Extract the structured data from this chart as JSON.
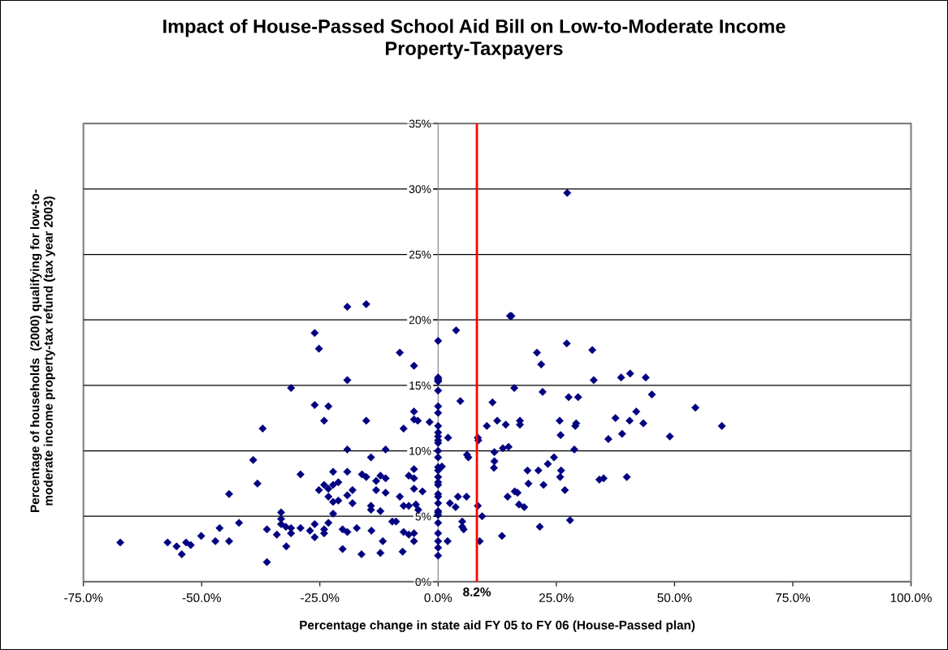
{
  "chart_data": {
    "type": "scatter",
    "title": "Impact of House-Passed School Aid Bill on Low-to-Moderate Income\nProperty-Taxpayers",
    "xlabel": "Percentage change in state aid FY 05 to FY 06 (House-Passed plan)",
    "ylabel": "Percentage of households  (2000) qualifying for low-to-\nmoderate income property-tax refund (tax year 2003)",
    "xlim": [
      -75,
      100
    ],
    "ylim": [
      0,
      35
    ],
    "xticks": [
      {
        "value": -75,
        "label": "-75.0%"
      },
      {
        "value": -50,
        "label": "-50.0%"
      },
      {
        "value": -25,
        "label": "-25.0%"
      },
      {
        "value": 0,
        "label": "0.0%"
      },
      {
        "value": 25,
        "label": "25.0%"
      },
      {
        "value": 50,
        "label": "50.0%"
      },
      {
        "value": 75,
        "label": "75.0%"
      },
      {
        "value": 100,
        "label": "100.0%"
      }
    ],
    "yticks": [
      {
        "value": 0,
        "label": "0%"
      },
      {
        "value": 5,
        "label": "5%"
      },
      {
        "value": 10,
        "label": "10%"
      },
      {
        "value": 15,
        "label": "15%"
      },
      {
        "value": 20,
        "label": "20%"
      },
      {
        "value": 25,
        "label": "25%"
      },
      {
        "value": 30,
        "label": "30%"
      },
      {
        "value": 35,
        "label": "35%"
      }
    ],
    "grid": "y",
    "marker": "diamond",
    "ref_lines": [
      {
        "axis": "x",
        "value": 8.2,
        "label": "8.2%",
        "color": "#ff0000",
        "line_style": "solid"
      }
    ],
    "series": [
      {
        "color": "#000080",
        "x": [
          -67.2,
          -57.2,
          -55.3,
          -54.2,
          -53.3,
          -52.3,
          -50.1,
          -47.1,
          -46.2,
          -44.2,
          -44.2,
          -42.1,
          -39.1,
          -38.2,
          -37.1,
          -36.2,
          -36.2,
          -34.1,
          -33.2,
          -33.2,
          -33.2,
          -32.2,
          -32.1,
          -31.1,
          -31.1,
          -31.1,
          -29.1,
          -29.1,
          -27.1,
          -26.1,
          -26.1,
          -26.1,
          -26.1,
          -25.2,
          -25.2,
          -24.1,
          -24.1,
          -24.1,
          -24.1,
          -23.2,
          -23.2,
          -23.2,
          -23.2,
          -22.2,
          -22.2,
          -22.2,
          -22.2,
          -21.1,
          -21.1,
          -20.2,
          -20.2,
          -19.2,
          -19.2,
          -19.2,
          -19.2,
          -19.2,
          -19.2,
          -18.1,
          -18.1,
          -17.2,
          -16.2,
          -16.1,
          -15.2,
          -15.2,
          -15.2,
          -14.2,
          -14.2,
          -14.2,
          -14.1,
          -13.1,
          -13.1,
          -12.2,
          -12.2,
          -12.2,
          -11.7,
          -11.1,
          -11.1,
          -11.1,
          -9.7,
          -8.9,
          -8.1,
          -8.1,
          -7.5,
          -7.3,
          -7.3,
          -7.3,
          -6.2,
          -6.2,
          -6.2,
          -5.1,
          -5.1,
          -5.1,
          -5.1,
          -5.1,
          -5.1,
          -5.1,
          -5.1,
          -4.7,
          -4.3,
          -4.2,
          -3.3,
          -1.8,
          0,
          0,
          0,
          0,
          0,
          0,
          0,
          0,
          0,
          0,
          0,
          0,
          0,
          0,
          0,
          0,
          0,
          0,
          0,
          0,
          0,
          0,
          0,
          0,
          0,
          0,
          0,
          0,
          0,
          0,
          0,
          0.8,
          2.0,
          2.1,
          2.5,
          3.7,
          3.8,
          4.2,
          4.7,
          5.1,
          5.1,
          5.4,
          6.0,
          6.1,
          6.4,
          8.4,
          8.5,
          8.4,
          8.8,
          9.3,
          10.3,
          11.5,
          11.8,
          11.9,
          11.9,
          12.5,
          13.5,
          13.7,
          14.3,
          14.7,
          14.9,
          15.2,
          15.5,
          16.1,
          16.2,
          16.8,
          17.1,
          17.3,
          17.3,
          18.2,
          18.9,
          19.1,
          20.9,
          21.2,
          21.5,
          21.8,
          22.1,
          22.3,
          23.2,
          24.5,
          25.7,
          25.8,
          25.9,
          26.0,
          26.8,
          27.2,
          27.3,
          27.6,
          27.9,
          28.8,
          29.0,
          29.2,
          29.6,
          32.6,
          32.9,
          34.1,
          35.0,
          36.0,
          37.5,
          38.7,
          38.9,
          39.9,
          40.5,
          40.6,
          41.9,
          43.4,
          43.9,
          45.2,
          49.0,
          54.4,
          60.0
        ],
        "values": [
          3.0,
          3.0,
          2.7,
          2.1,
          3.0,
          2.8,
          3.5,
          3.1,
          4.1,
          6.7,
          3.1,
          4.5,
          9.3,
          7.5,
          11.7,
          1.5,
          4.0,
          3.6,
          5.3,
          4.8,
          4.4,
          4.2,
          2.7,
          4.1,
          14.8,
          3.7,
          4.1,
          8.2,
          3.9,
          4.4,
          3.4,
          13.5,
          19.0,
          17.8,
          7.0,
          12.3,
          7.4,
          3.7,
          4.0,
          13.4,
          4.5,
          6.5,
          7.1,
          5.2,
          8.4,
          6.1,
          7.4,
          7.6,
          6.2,
          2.5,
          4.0,
          3.8,
          21.0,
          15.4,
          10.1,
          6.6,
          8.4,
          6.0,
          7.0,
          4.1,
          2.1,
          8.2,
          21.2,
          12.3,
          8.0,
          9.5,
          5.8,
          5.5,
          3.9,
          7.0,
          7.7,
          2.2,
          8.1,
          5.4,
          3.1,
          10.1,
          7.9,
          6.8,
          4.6,
          4.6,
          17.5,
          6.5,
          2.3,
          11.7,
          5.8,
          3.8,
          8.1,
          5.8,
          3.6,
          16.5,
          13.0,
          12.4,
          8.6,
          7.9,
          7.1,
          3.1,
          3.7,
          5.9,
          12.3,
          5.5,
          6.9,
          12.2,
          18.4,
          15.6,
          15.5,
          15.4,
          15.3,
          14.6,
          13.4,
          12.9,
          11.9,
          11.4,
          11.1,
          10.8,
          10.6,
          10.0,
          9.5,
          8.75,
          8.5,
          8.0,
          7.6,
          7.4,
          6.7,
          6.5,
          6.0,
          5.4,
          5.3,
          5.1,
          4.5,
          3.7,
          3.1,
          2.6,
          2.0,
          8.8,
          3.1,
          11.0,
          6.0,
          5.7,
          19.2,
          6.5,
          13.8,
          4.6,
          4.2,
          4.0,
          6.5,
          9.7,
          9.5,
          11.0,
          10.8,
          5.8,
          3.1,
          5.0,
          11.9,
          13.7,
          8.7,
          9.9,
          9.2,
          12.3,
          3.5,
          10.2,
          12.0,
          6.5,
          10.3,
          20.3,
          20.3,
          14.8,
          6.9,
          6.8,
          5.9,
          12.3,
          12.0,
          5.7,
          8.5,
          7.5,
          17.5,
          8.5,
          4.2,
          16.6,
          14.5,
          7.4,
          9.0,
          9.5,
          12.3,
          8.0,
          11.2,
          8.5,
          7.0,
          18.2,
          29.7,
          14.1,
          4.7,
          10.1,
          11.9,
          12.1,
          14.1,
          17.7,
          15.4,
          7.8,
          7.9,
          10.9,
          12.5,
          15.6,
          11.3,
          8.0,
          12.3,
          15.9,
          13.0,
          12.1,
          15.6,
          14.3,
          11.1,
          13.3,
          11.9
        ]
      }
    ]
  }
}
